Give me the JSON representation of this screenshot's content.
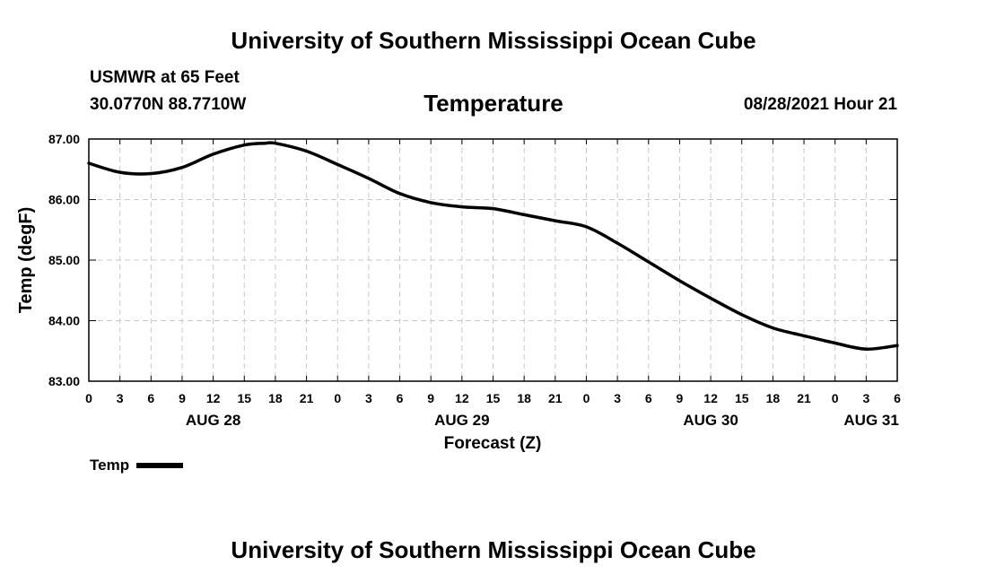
{
  "header": {
    "title_top": "University of Southern Mississippi Ocean Cube",
    "station": "USMWR at 65 Feet",
    "coords": "30.0770N  88.7710W",
    "chart_title": "Temperature",
    "datetime": "08/28/2021 Hour 21"
  },
  "footer": {
    "title_bottom": "University of Southern Mississippi Ocean Cube"
  },
  "legend": {
    "label": "Temp"
  },
  "chart_data": {
    "type": "line",
    "title": "Temperature",
    "xlabel": "Forecast (Z)",
    "ylabel": "Temp (degF)",
    "xlim": [
      0,
      78
    ],
    "ylim": [
      83.0,
      87.0
    ],
    "grid": true,
    "y_ticks": [
      83.0,
      84.0,
      85.0,
      86.0,
      87.0
    ],
    "y_tick_labels": [
      "83.00",
      "84.00",
      "85.00",
      "86.00",
      "87.00"
    ],
    "x_ticks": [
      0,
      3,
      6,
      9,
      12,
      15,
      18,
      21,
      24,
      27,
      30,
      33,
      36,
      39,
      42,
      45,
      48,
      51,
      54,
      57,
      60,
      63,
      66,
      69,
      72,
      75,
      78
    ],
    "x_tick_labels": [
      "0",
      "3",
      "6",
      "9",
      "12",
      "15",
      "18",
      "21",
      "0",
      "3",
      "6",
      "9",
      "12",
      "15",
      "18",
      "21",
      "0",
      "3",
      "6",
      "9",
      "12",
      "15",
      "18",
      "21",
      "0",
      "3",
      "6"
    ],
    "date_labels": [
      {
        "text": "AUG 28",
        "x": 12
      },
      {
        "text": "AUG 29",
        "x": 36
      },
      {
        "text": "AUG 30",
        "x": 60
      },
      {
        "text": "AUG 31",
        "x": 75.5
      }
    ],
    "series": [
      {
        "name": "Temp",
        "color": "#000000",
        "x": [
          0,
          3,
          6,
          9,
          12,
          15,
          17,
          18,
          21,
          24,
          27,
          30,
          33,
          36,
          39,
          42,
          45,
          48,
          51,
          54,
          57,
          60,
          63,
          66,
          69,
          72,
          75,
          78
        ],
        "values": [
          86.6,
          86.45,
          86.43,
          86.53,
          86.75,
          86.9,
          86.93,
          86.93,
          86.8,
          86.58,
          86.35,
          86.1,
          85.95,
          85.88,
          85.85,
          85.75,
          85.65,
          85.55,
          85.28,
          84.97,
          84.66,
          84.37,
          84.1,
          83.88,
          83.75,
          83.63,
          83.53,
          83.59
        ]
      }
    ]
  }
}
